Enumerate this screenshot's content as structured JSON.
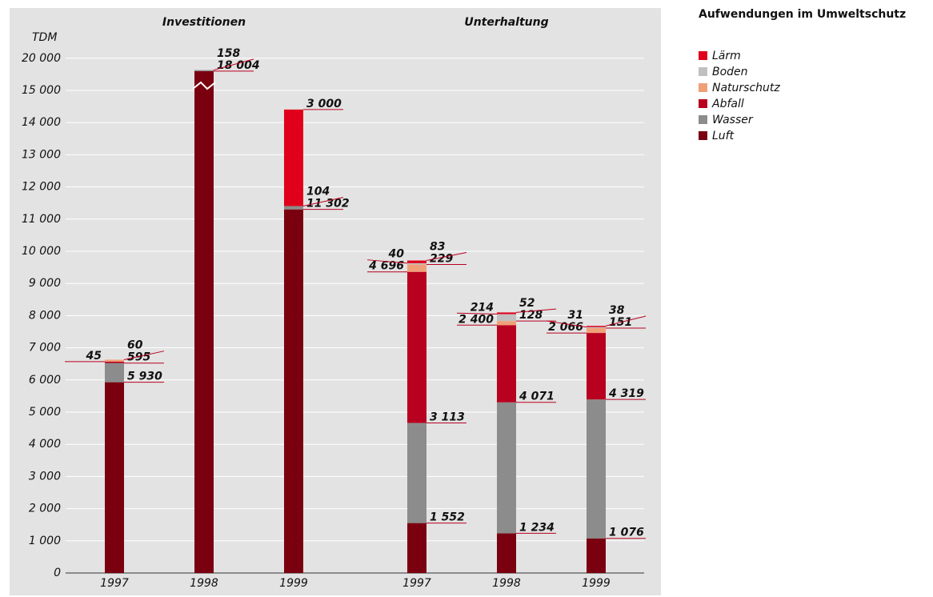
{
  "chart_data": {
    "type": "stacked_bar",
    "legend_title": "Aufwendungen im Umweltschutz",
    "ylabel": "TDM",
    "groups": [
      "Investitionen",
      "Unterhaltung"
    ],
    "categories": [
      "1997",
      "1998",
      "1999",
      "1997",
      "1998",
      "1999"
    ],
    "series": [
      {
        "name": "Luft",
        "color": "#7a0010",
        "values": [
          5930,
          18004,
          11302,
          1552,
          1234,
          1076
        ],
        "value_labels": [
          "5 930",
          "18 004",
          "11 302",
          "1 552",
          "1 234",
          "1 076"
        ]
      },
      {
        "name": "Wasser",
        "color": "#8c8c8c",
        "values": [
          595,
          158,
          104,
          3113,
          4071,
          4319
        ],
        "value_labels": [
          "595",
          "158",
          "104",
          "3 113",
          "4 071",
          "4 319"
        ]
      },
      {
        "name": "Abfall",
        "color": "#b8001f",
        "values": [
          45,
          null,
          null,
          4696,
          2400,
          2066
        ],
        "value_labels": [
          "45",
          null,
          null,
          "4 696",
          "2 400",
          "2 066"
        ]
      },
      {
        "name": "Naturschutz",
        "color": "#f0a078",
        "values": [
          60,
          null,
          null,
          229,
          128,
          151
        ],
        "value_labels": [
          "60",
          null,
          null,
          "229",
          "128",
          "151"
        ]
      },
      {
        "name": "Boden",
        "color": "#c0c0c0",
        "values": [
          null,
          null,
          null,
          40,
          214,
          31
        ],
        "value_labels": [
          null,
          null,
          null,
          "40",
          "214",
          "31"
        ]
      },
      {
        "name": "Lärm",
        "color": "#e0001b",
        "values": [
          null,
          null,
          3000,
          83,
          52,
          38
        ],
        "value_labels": [
          null,
          null,
          "3 000",
          "83",
          "52",
          "38"
        ]
      }
    ],
    "yticks": [
      0,
      {
        "value": 1000,
        "label": "1 000"
      },
      {
        "value": 2000,
        "label": "2 000"
      },
      {
        "value": 3000,
        "label": "3 000"
      },
      {
        "value": 4000,
        "label": "4 000"
      },
      {
        "value": 5000,
        "label": "5 000"
      },
      {
        "value": 6000,
        "label": "6 000"
      },
      {
        "value": 7000,
        "label": "7 000"
      },
      {
        "value": 8000,
        "label": "8 000"
      },
      {
        "value": 9000,
        "label": "9 000"
      },
      {
        "value": 10000,
        "label": "10 000"
      },
      {
        "value": 11000,
        "label": "11 000"
      },
      {
        "value": 12000,
        "label": "12 000"
      },
      {
        "value": 13000,
        "label": "13 000"
      },
      {
        "value": 14000,
        "label": "14 000"
      },
      {
        "value": 15000,
        "label": "15 000"
      },
      {
        "value": 20000,
        "label": "20 000"
      }
    ],
    "grid": true
  }
}
